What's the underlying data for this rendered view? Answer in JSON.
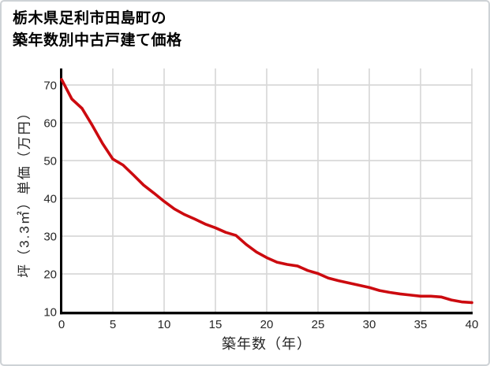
{
  "title": {
    "line1": "栃木県足利市田島町の",
    "line2": "築年数別中古戸建て価格"
  },
  "chart_data": {
    "type": "line",
    "title": "栃木県足利市田島町の築年数別中古戸建て価格",
    "xlabel": "築年数（年）",
    "ylabel": "坪（3.3㎡）単価（万円）",
    "x": [
      0,
      1,
      2,
      3,
      4,
      5,
      6,
      7,
      8,
      9,
      10,
      11,
      12,
      13,
      14,
      15,
      16,
      17,
      18,
      19,
      20,
      21,
      22,
      23,
      24,
      25,
      26,
      27,
      28,
      29,
      30,
      31,
      32,
      33,
      34,
      35,
      36,
      37,
      38,
      39,
      40
    ],
    "values": [
      71.5,
      66.3,
      63.8,
      59.3,
      54.5,
      50.4,
      48.8,
      46.2,
      43.5,
      41.4,
      39.2,
      37.2,
      35.7,
      34.5,
      33.2,
      32.2,
      31.0,
      30.2,
      27.8,
      25.8,
      24.3,
      23.1,
      22.5,
      22.1,
      20.9,
      20.1,
      18.9,
      18.2,
      17.6,
      17.0,
      16.4,
      15.6,
      15.1,
      14.7,
      14.4,
      14.1,
      14.1,
      13.9,
      13.1,
      12.6,
      12.4
    ],
    "x_ticks": [
      0,
      5,
      10,
      15,
      20,
      25,
      30,
      35,
      40
    ],
    "y_ticks": [
      10,
      20,
      30,
      40,
      50,
      60,
      70
    ],
    "xlim": [
      0,
      40
    ],
    "ylim": [
      10,
      74
    ],
    "grid": true,
    "legend": "none",
    "colors": {
      "line": "#cc0a0f",
      "axis": "#000000",
      "grid": "#d8d8d8",
      "tick_label": "#262626",
      "title": "#000000",
      "border": "#ced2d6",
      "background": "#ffffff"
    }
  }
}
